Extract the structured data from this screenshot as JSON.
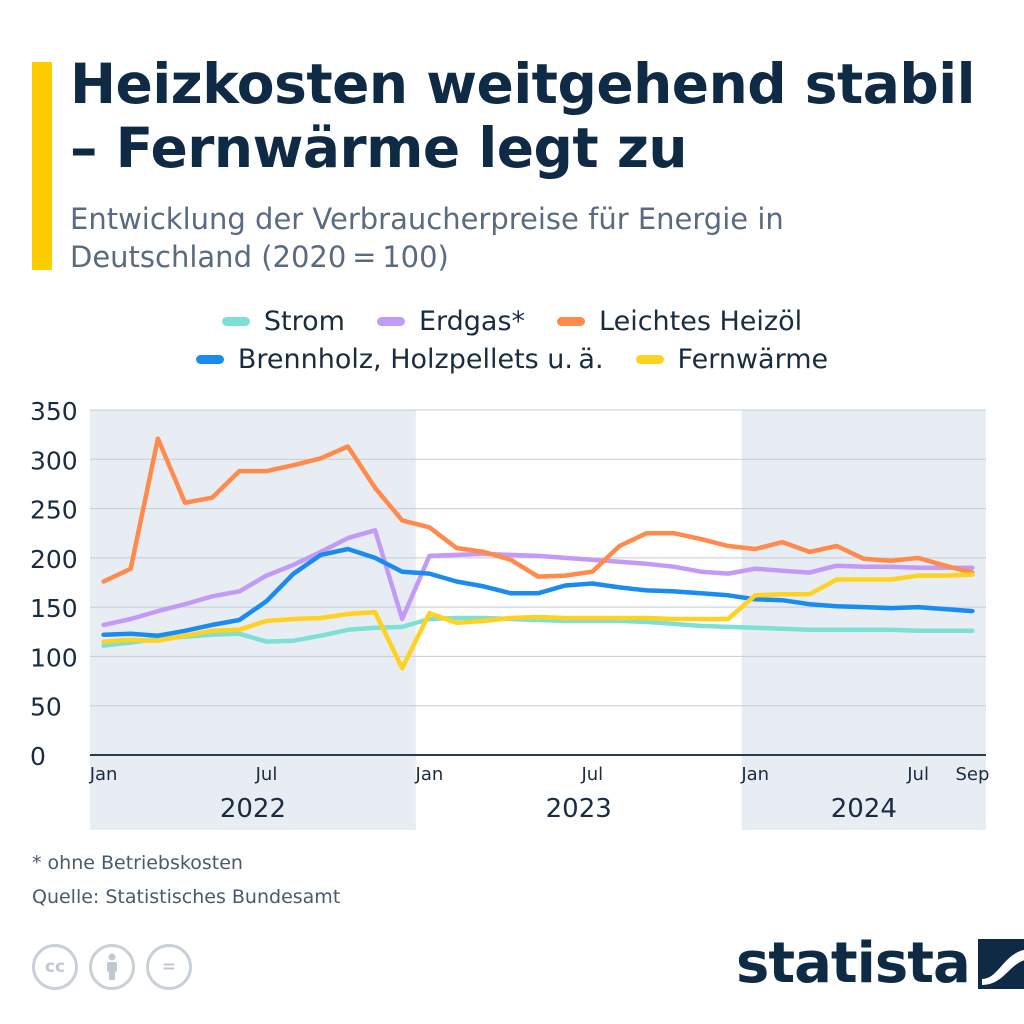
{
  "title": "Heizkosten weitgehend stabil – Fernwärme legt zu",
  "subtitle": "Entwicklung der Verbraucherpreise für Energie in Deutschland (2020 = 100)",
  "legend": [
    {
      "label": "Strom",
      "color": "#7ee0d4"
    },
    {
      "label": "Erdgas*",
      "color": "#c39af8"
    },
    {
      "label": "Leichtes Heizöl",
      "color": "#ff8a4c"
    },
    {
      "label": "Brennholz, Holzpellets u. ä.",
      "color": "#1a8cf0"
    },
    {
      "label": "Fernwärme",
      "color": "#ffd21f"
    }
  ],
  "chart_data": {
    "type": "line",
    "x": [
      "2022-01",
      "2022-02",
      "2022-03",
      "2022-04",
      "2022-05",
      "2022-06",
      "2022-07",
      "2022-08",
      "2022-09",
      "2022-10",
      "2022-11",
      "2022-12",
      "2023-01",
      "2023-02",
      "2023-03",
      "2023-04",
      "2023-05",
      "2023-06",
      "2023-07",
      "2023-08",
      "2023-09",
      "2023-10",
      "2023-11",
      "2023-12",
      "2024-01",
      "2024-02",
      "2024-03",
      "2024-04",
      "2024-05",
      "2024-06",
      "2024-07",
      "2024-08",
      "2024-09"
    ],
    "x_tick_labels": [
      {
        "x": "2022-01",
        "label": "Jan"
      },
      {
        "x": "2022-07",
        "label": "Jul"
      },
      {
        "x": "2023-01",
        "label": "Jan"
      },
      {
        "x": "2023-07",
        "label": "Jul"
      },
      {
        "x": "2024-01",
        "label": "Jan"
      },
      {
        "x": "2024-07",
        "label": "Jul"
      },
      {
        "x": "2024-09",
        "label": "Sep"
      }
    ],
    "years": [
      {
        "label": "2022",
        "from": "2022-01",
        "to": "2022-12",
        "shaded": true
      },
      {
        "label": "2023",
        "from": "2023-01",
        "to": "2023-12",
        "shaded": false
      },
      {
        "label": "2024",
        "from": "2024-01",
        "to": "2024-09",
        "shaded": true
      }
    ],
    "ylim": [
      0,
      350
    ],
    "yticks": [
      0,
      50,
      100,
      150,
      200,
      250,
      300,
      350
    ],
    "grid": true,
    "legend_position": "top",
    "series": [
      {
        "name": "Strom",
        "color": "#7ee0d4",
        "values": [
          111,
          114,
          118,
          120,
          122,
          123,
          115,
          116,
          121,
          127,
          129,
          130,
          138,
          139,
          139,
          138,
          137,
          136,
          136,
          136,
          135,
          133,
          131,
          130,
          129,
          128,
          127,
          127,
          127,
          127,
          126,
          126,
          126
        ]
      },
      {
        "name": "Erdgas*",
        "color": "#c39af8",
        "values": [
          132,
          138,
          146,
          153,
          161,
          166,
          182,
          193,
          206,
          220,
          228,
          138,
          202,
          203,
          204,
          203,
          202,
          200,
          198,
          196,
          194,
          191,
          186,
          184,
          189,
          187,
          185,
          192,
          191,
          191,
          190,
          190,
          190
        ]
      },
      {
        "name": "Leichtes Heizöl",
        "color": "#ff8a4c",
        "values": [
          176,
          189,
          321,
          256,
          261,
          288,
          288,
          294,
          301,
          313,
          271,
          238,
          231,
          210,
          206,
          198,
          181,
          182,
          186,
          212,
          225,
          225,
          219,
          212,
          209,
          216,
          206,
          212,
          199,
          197,
          200,
          192,
          185
        ]
      },
      {
        "name": "Brennholz, Holzpellets u. ä.",
        "color": "#1a8cf0",
        "values": [
          122,
          123,
          121,
          126,
          132,
          137,
          156,
          184,
          203,
          209,
          200,
          186,
          184,
          176,
          171,
          164,
          164,
          172,
          174,
          170,
          167,
          166,
          164,
          162,
          158,
          157,
          153,
          151,
          150,
          149,
          150,
          148,
          146
        ]
      },
      {
        "name": "Fernwärme",
        "color": "#ffd21f",
        "values": [
          115,
          117,
          116,
          121,
          126,
          127,
          136,
          138,
          139,
          143,
          145,
          88,
          144,
          134,
          136,
          139,
          140,
          139,
          139,
          139,
          139,
          138,
          138,
          138,
          162,
          163,
          163,
          178,
          178,
          178,
          182,
          182,
          183
        ]
      }
    ]
  },
  "footnote": "* ohne Betriebskosten",
  "source": "Quelle: Statistisches Bundesamt",
  "license_icons": [
    "cc-icon",
    "attribution-icon",
    "no-derivatives-icon"
  ],
  "license_glyphs": {
    "cc": "cc",
    "nd": "="
  },
  "brand": "statista"
}
